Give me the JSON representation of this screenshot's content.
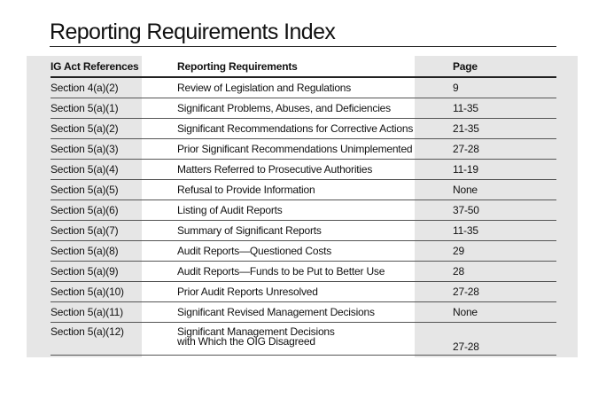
{
  "header": {
    "title": "Reporting Requirements Index"
  },
  "table": {
    "columns": [
      "IG Act References",
      "Reporting Requirements",
      "Page"
    ],
    "rows": [
      [
        "Section 4(a)(2)",
        "Review of Legislation and Regulations",
        "9"
      ],
      [
        "Section 5(a)(1)",
        "Significant Problems, Abuses, and Deficiencies",
        "11-35"
      ],
      [
        "Section 5(a)(2)",
        "Significant Recommendations for Corrective Actions",
        "21-35"
      ],
      [
        "Section 5(a)(3)",
        "Prior Significant Recommendations Unimplemented",
        "27-28"
      ],
      [
        "Section 5(a)(4)",
        "Matters Referred to Prosecutive Authorities",
        "11-19"
      ],
      [
        "Section 5(a)(5)",
        "Refusal to Provide Information",
        "None"
      ],
      [
        "Section 5(a)(6)",
        "Listing of Audit Reports",
        "37-50"
      ],
      [
        "Section 5(a)(7)",
        "Summary of Significant Reports",
        "11-35"
      ],
      [
        "Section 5(a)(8)",
        "Audit Reports—Questioned Costs",
        "29"
      ],
      [
        "Section 5(a)(9)",
        "Audit Reports—Funds to be Put to Better Use",
        "28"
      ],
      [
        "Section 5(a)(10)",
        "Prior Audit Reports Unresolved",
        "27-28"
      ],
      [
        "Section 5(a)(11)",
        "Significant Revised Management Decisions",
        "None"
      ],
      [
        "Section 5(a)(12)",
        "Significant Management Decisions\nwith Which the OIG Disagreed",
        "27-28"
      ]
    ]
  }
}
